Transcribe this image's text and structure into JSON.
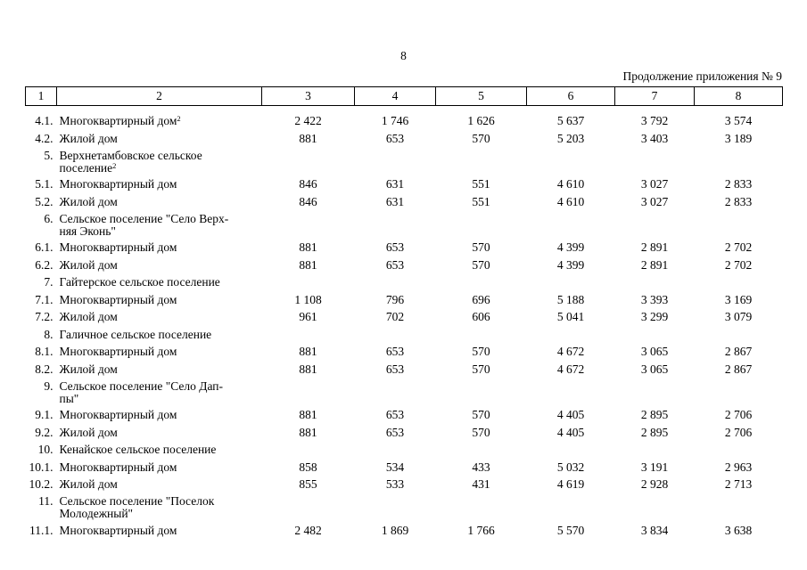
{
  "page": {
    "number": "8",
    "continuation_note": "Продолжение приложения № 9"
  },
  "table": {
    "header_cols": [
      "1",
      "2",
      "3",
      "4",
      "5",
      "6",
      "7",
      "8"
    ],
    "rows": [
      {
        "num": "4.1.",
        "name_lines": [
          {
            "text": "Многоквартирный дом",
            "sup": "2"
          }
        ],
        "values": [
          "2 422",
          "1 746",
          "1 626",
          "5 637",
          "3 792",
          "3 574"
        ]
      },
      {
        "num": "4.2.",
        "name_lines": [
          {
            "text": "Жилой дом",
            "sup": ""
          }
        ],
        "values": [
          "881",
          "653",
          "570",
          "5 203",
          "3 403",
          "3 189"
        ]
      },
      {
        "num": "5.",
        "name_lines": [
          {
            "text": "Верхнетамбовское сельское",
            "sup": ""
          },
          {
            "text": "поселение",
            "sup": "2"
          }
        ],
        "values": []
      },
      {
        "num": "5.1.",
        "name_lines": [
          {
            "text": "Многоквартирный дом",
            "sup": ""
          }
        ],
        "values": [
          "846",
          "631",
          "551",
          "4 610",
          "3 027",
          "2 833"
        ]
      },
      {
        "num": "5.2.",
        "name_lines": [
          {
            "text": "Жилой дом",
            "sup": ""
          }
        ],
        "values": [
          "846",
          "631",
          "551",
          "4 610",
          "3 027",
          "2 833"
        ]
      },
      {
        "num": "6.",
        "name_lines": [
          {
            "text": "Сельское поселение \"Село Верх-",
            "sup": ""
          },
          {
            "text": "няя Эконь\"",
            "sup": ""
          }
        ],
        "values": []
      },
      {
        "num": "6.1.",
        "name_lines": [
          {
            "text": "Многоквартирный дом",
            "sup": ""
          }
        ],
        "values": [
          "881",
          "653",
          "570",
          "4 399",
          "2 891",
          "2 702"
        ]
      },
      {
        "num": "6.2.",
        "name_lines": [
          {
            "text": "Жилой дом",
            "sup": ""
          }
        ],
        "values": [
          "881",
          "653",
          "570",
          "4 399",
          "2 891",
          "2 702"
        ]
      },
      {
        "num": "7.",
        "name_lines": [
          {
            "text": "Гайтерское сельское поселение",
            "sup": ""
          }
        ],
        "values": []
      },
      {
        "num": "7.1.",
        "name_lines": [
          {
            "text": "Многоквартирный дом",
            "sup": ""
          }
        ],
        "values": [
          "1 108",
          "796",
          "696",
          "5 188",
          "3 393",
          "3 169"
        ]
      },
      {
        "num": "7.2.",
        "name_lines": [
          {
            "text": "Жилой дом",
            "sup": ""
          }
        ],
        "values": [
          "961",
          "702",
          "606",
          "5 041",
          "3 299",
          "3 079"
        ]
      },
      {
        "num": "8.",
        "name_lines": [
          {
            "text": "Галичное сельское поселение",
            "sup": ""
          }
        ],
        "values": []
      },
      {
        "num": "8.1.",
        "name_lines": [
          {
            "text": "Многоквартирный дом",
            "sup": ""
          }
        ],
        "values": [
          "881",
          "653",
          "570",
          "4 672",
          "3 065",
          "2 867"
        ]
      },
      {
        "num": "8.2.",
        "name_lines": [
          {
            "text": "Жилой дом",
            "sup": ""
          }
        ],
        "values": [
          "881",
          "653",
          "570",
          "4 672",
          "3 065",
          "2 867"
        ]
      },
      {
        "num": "9.",
        "name_lines": [
          {
            "text": "Сельское поселение \"Село Дап-",
            "sup": ""
          },
          {
            "text": "пы\"",
            "sup": ""
          }
        ],
        "values": []
      },
      {
        "num": "9.1.",
        "name_lines": [
          {
            "text": "Многоквартирный дом",
            "sup": ""
          }
        ],
        "values": [
          "881",
          "653",
          "570",
          "4 405",
          "2 895",
          "2 706"
        ]
      },
      {
        "num": "9.2.",
        "name_lines": [
          {
            "text": "Жилой дом",
            "sup": ""
          }
        ],
        "values": [
          "881",
          "653",
          "570",
          "4 405",
          "2 895",
          "2 706"
        ]
      },
      {
        "num": "10.",
        "name_lines": [
          {
            "text": "Кенайское сельское поселение",
            "sup": ""
          }
        ],
        "values": []
      },
      {
        "num": "10.1.",
        "name_lines": [
          {
            "text": "Многоквартирный дом",
            "sup": ""
          }
        ],
        "values": [
          "858",
          "534",
          "433",
          "5 032",
          "3 191",
          "2 963"
        ]
      },
      {
        "num": "10.2.",
        "name_lines": [
          {
            "text": "Жилой дом",
            "sup": ""
          }
        ],
        "values": [
          "855",
          "533",
          "431",
          "4 619",
          "2 928",
          "2 713"
        ]
      },
      {
        "num": "11.",
        "name_lines": [
          {
            "text": "Сельское поселение \"Поселок",
            "sup": ""
          },
          {
            "text": "Молодежный\"",
            "sup": ""
          }
        ],
        "values": []
      },
      {
        "num": "11.1.",
        "name_lines": [
          {
            "text": "Многоквартирный дом",
            "sup": ""
          }
        ],
        "values": [
          "2 482",
          "1 869",
          "1 766",
          "5 570",
          "3 834",
          "3 638"
        ]
      }
    ]
  }
}
